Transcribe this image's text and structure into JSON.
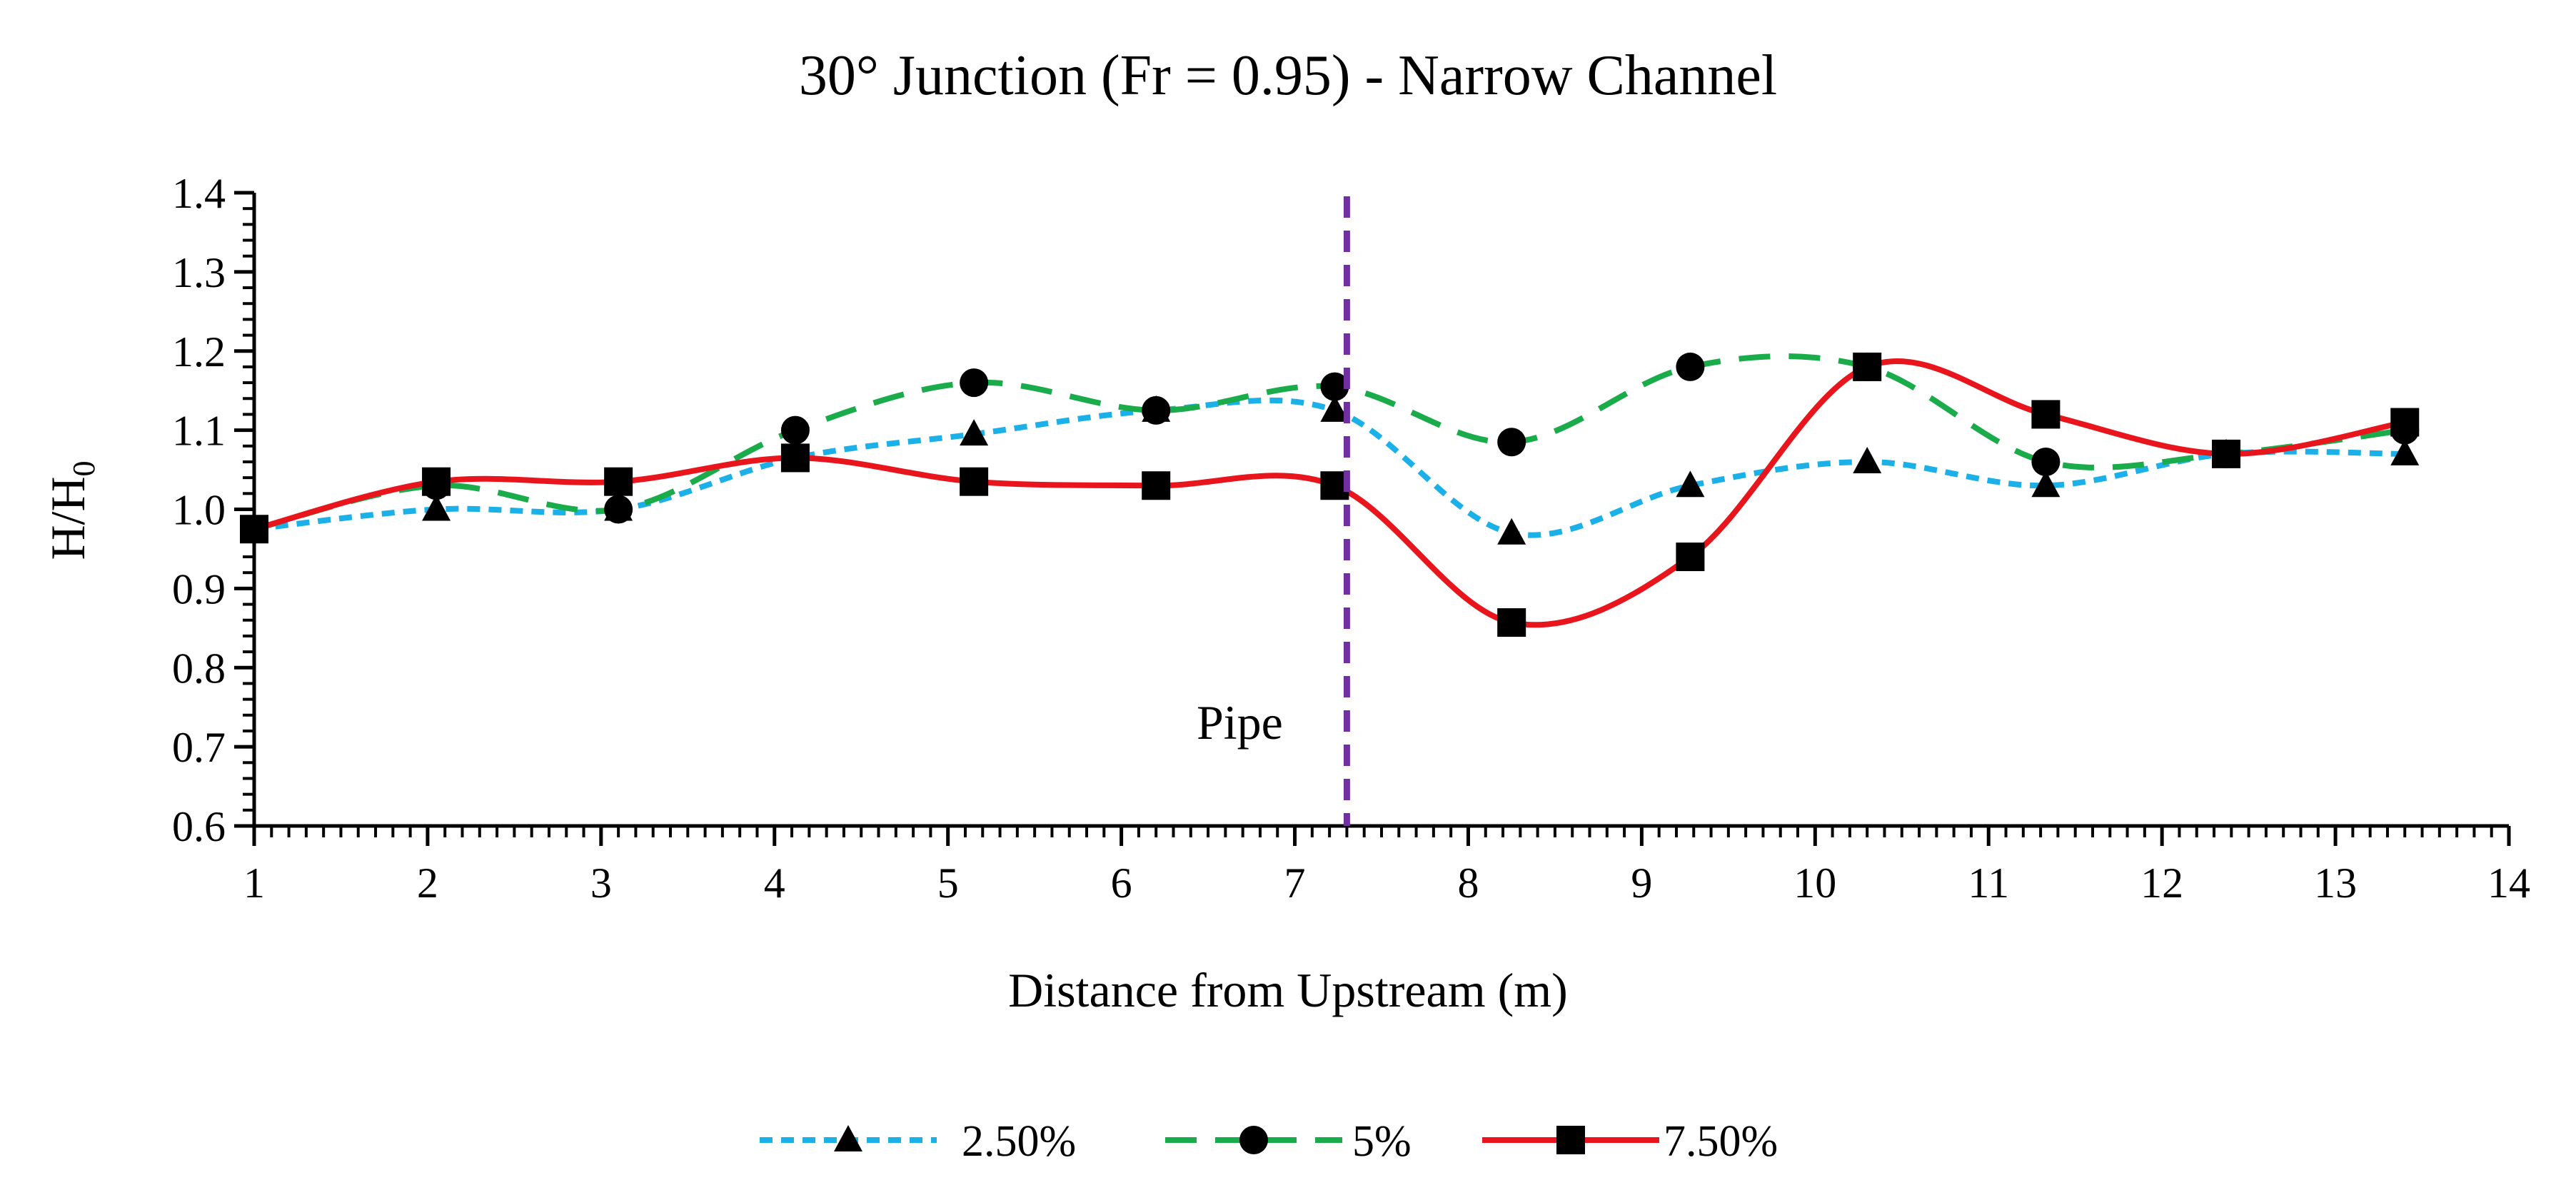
{
  "chart_data": {
    "type": "line",
    "title": "30° Junction (Fr = 0.95) - Narrow Channel",
    "xlabel": "Distance from Upstream (m)",
    "ylabel_main": "H/H",
    "ylabel_sub": "0",
    "xlim": [
      1,
      14
    ],
    "ylim": [
      0.6,
      1.4
    ],
    "x_ticks": [
      "1",
      "2",
      "3",
      "4",
      "5",
      "6",
      "7",
      "8",
      "9",
      "10",
      "11",
      "12",
      "13",
      "14"
    ],
    "y_ticks": [
      "0.6",
      "0.7",
      "0.8",
      "0.9",
      "1.0",
      "1.1",
      "1.2",
      "1.3",
      "1.4"
    ],
    "grid": false,
    "legend_position": "bottom",
    "annotation": {
      "text": "Pipe",
      "x": 7.3
    },
    "series": [
      {
        "name": "2.50%",
        "color": "#1cb0e8",
        "dash": "short-dash",
        "marker": "triangle",
        "x": [
          1.0,
          2.05,
          3.1,
          4.12,
          5.15,
          6.2,
          7.23,
          8.25,
          9.28,
          10.3,
          11.33,
          12.37,
          13.4
        ],
        "y": [
          0.975,
          1.0,
          1.0,
          1.065,
          1.095,
          1.125,
          1.125,
          0.97,
          1.03,
          1.06,
          1.03,
          1.07,
          1.07
        ]
      },
      {
        "name": "5%",
        "color": "#1aab4b",
        "dash": "long-dash",
        "marker": "circle",
        "x": [
          1.0,
          2.05,
          3.1,
          4.12,
          5.15,
          6.2,
          7.23,
          8.25,
          9.28,
          10.3,
          11.33,
          12.37,
          13.4
        ],
        "y": [
          0.975,
          1.03,
          1.0,
          1.1,
          1.16,
          1.125,
          1.155,
          1.085,
          1.18,
          1.18,
          1.06,
          1.07,
          1.1
        ]
      },
      {
        "name": "7.50%",
        "color": "#e8151d",
        "dash": "solid",
        "marker": "square",
        "x": [
          1.0,
          2.05,
          3.1,
          4.12,
          5.15,
          6.2,
          7.23,
          8.25,
          9.28,
          10.3,
          11.33,
          12.37,
          13.4
        ],
        "y": [
          0.975,
          1.035,
          1.035,
          1.065,
          1.035,
          1.03,
          1.03,
          0.857,
          0.94,
          1.18,
          1.12,
          1.07,
          1.11
        ]
      }
    ],
    "pipe_line_color": "#7030a0"
  }
}
